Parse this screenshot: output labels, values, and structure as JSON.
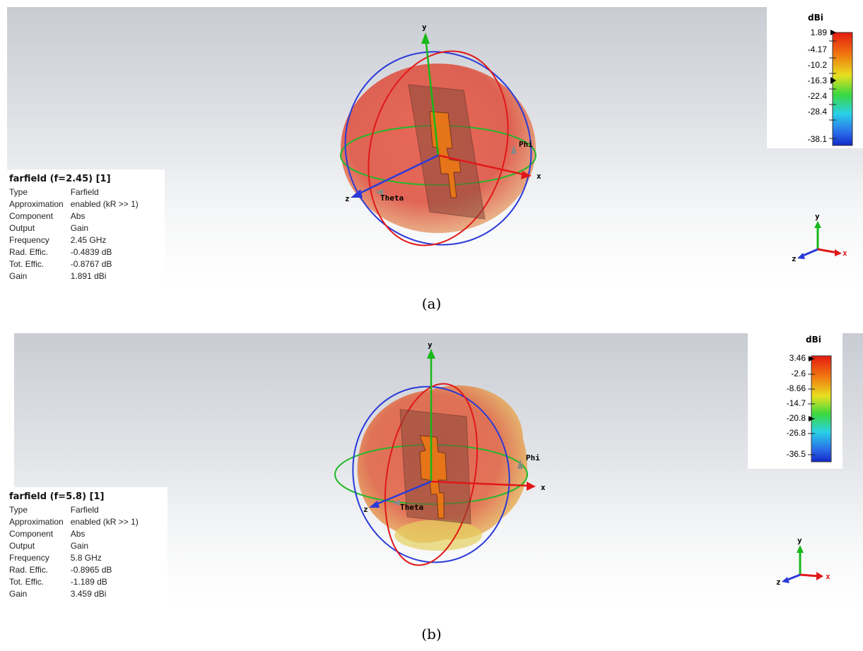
{
  "panel_a": {
    "info_title": "farfield (f=2.45) [1]",
    "rows": [
      {
        "key": "Type",
        "value": "Farfield"
      },
      {
        "key": "Approximation",
        "value": "enabled (kR >> 1)"
      },
      {
        "key": "Component",
        "value": "Abs"
      },
      {
        "key": "Output",
        "value": "Gain"
      },
      {
        "key": "Frequency",
        "value": "2.45 GHz"
      },
      {
        "key": "Rad. Effic.",
        "value": "-0.4839 dB"
      },
      {
        "key": "Tot. Effic.",
        "value": "-0.8767 dB"
      },
      {
        "key": "Gain",
        "value": "1.891 dBi"
      }
    ],
    "scale_unit": "dBi",
    "scale_ticks": [
      "1.89",
      "-4.17",
      "-10.2",
      "-16.3",
      "-22.4",
      "-28.4",
      "-38.1"
    ],
    "axes": {
      "x": "x",
      "y": "y",
      "z": "z",
      "phi": "Phi",
      "theta": "Theta"
    },
    "caption": "(a)"
  },
  "panel_b": {
    "info_title": "farfield (f=5.8) [1]",
    "rows": [
      {
        "key": "Type",
        "value": "Farfield"
      },
      {
        "key": "Approximation",
        "value": "enabled (kR >> 1)"
      },
      {
        "key": "Component",
        "value": "Abs"
      },
      {
        "key": "Output",
        "value": "Gain"
      },
      {
        "key": "Frequency",
        "value": "5.8 GHz"
      },
      {
        "key": "Rad. Effic.",
        "value": "-0.8965 dB"
      },
      {
        "key": "Tot. Effic.",
        "value": "-1.189 dB"
      },
      {
        "key": "Gain",
        "value": "3.459 dBi"
      }
    ],
    "scale_unit": "dBi",
    "scale_ticks": [
      "3.46",
      "-2.6",
      "-8.66",
      "-14.7",
      "-20.8",
      "-26.8",
      "-36.5"
    ],
    "axes": {
      "x": "x",
      "y": "y",
      "z": "z",
      "phi": "Phi",
      "theta": "Theta"
    },
    "caption": "(b)"
  },
  "colors": {
    "x_axis": "#e01818",
    "y_axis": "#18b818",
    "z_axis": "#2a3ad8",
    "pattern": "#e24a36",
    "substrate": "#8a5a48",
    "patch": "#f07a10"
  }
}
